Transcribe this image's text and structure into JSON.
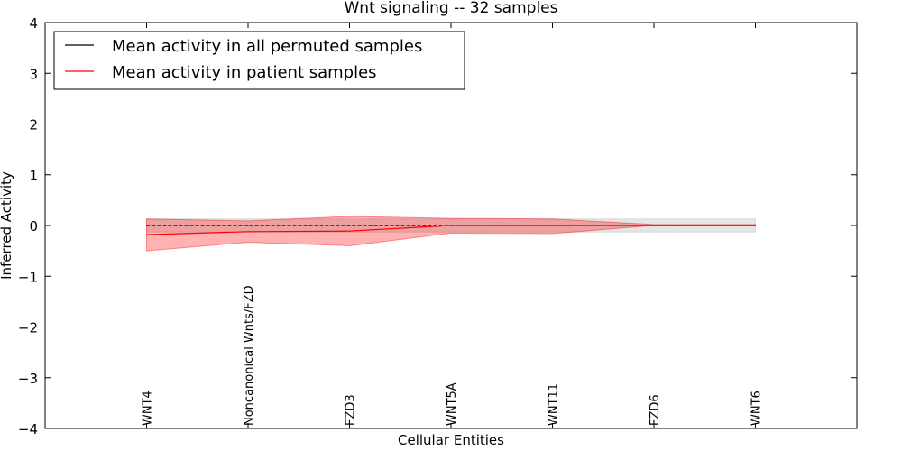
{
  "chart_data": {
    "type": "line",
    "title": "Wnt signaling -- 32 samples",
    "xlabel": "Cellular Entities",
    "ylabel": "Inferred Activity",
    "ylim": [
      -4,
      4
    ],
    "yticks": [
      -4,
      -3,
      -2,
      -1,
      0,
      1,
      2,
      3,
      4
    ],
    "ytick_labels": [
      "−4",
      "−3",
      "−2",
      "−1",
      "0",
      "1",
      "2",
      "3",
      "4"
    ],
    "categories": [
      "WNT4",
      "Noncanonical Wnts/FZD",
      "FZD3",
      "WNT5A",
      "WNT11",
      "FZD6",
      "WNT6"
    ],
    "legend_position": "top-left",
    "series": [
      {
        "name": "Mean activity in all permuted samples",
        "color": "#000000",
        "values": [
          0,
          0,
          0,
          0,
          0,
          0,
          0
        ],
        "band_lower": [
          -0.13,
          -0.13,
          -0.13,
          -0.13,
          -0.13,
          -0.13,
          -0.13
        ],
        "band_upper": [
          0.13,
          0.13,
          0.13,
          0.13,
          0.13,
          0.13,
          0.13
        ],
        "band_color": "#bfbfbf"
      },
      {
        "name": "Mean activity in patient samples",
        "color": "#ff0000",
        "values": [
          -0.18,
          -0.12,
          -0.11,
          0.0,
          0.0,
          0.0,
          0.0
        ],
        "band_lower": [
          -0.5,
          -0.33,
          -0.4,
          -0.15,
          -0.16,
          0.0,
          0.0
        ],
        "band_upper": [
          0.13,
          0.09,
          0.18,
          0.14,
          0.13,
          0.02,
          0.02
        ],
        "band_color": "#ff0000"
      }
    ]
  }
}
